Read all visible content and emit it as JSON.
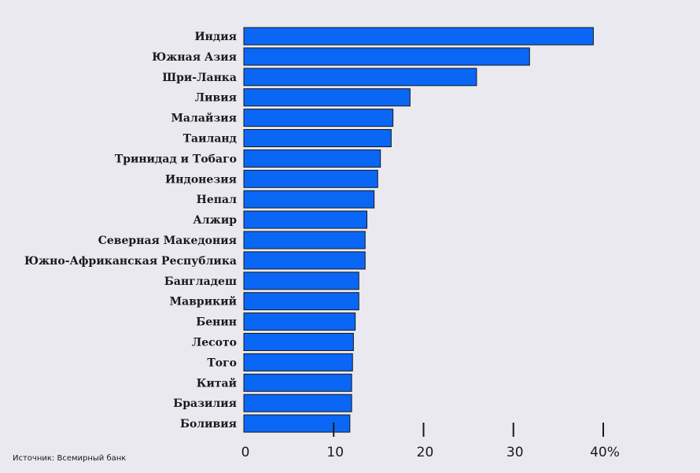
{
  "chart_data": {
    "type": "bar",
    "orientation": "horizontal",
    "categories": [
      "Индия",
      "Южная Азия",
      "Шри-Ланка",
      "Ливия",
      "Малайзия",
      "Таиланд",
      "Тринидад и Тобаго",
      "Индонезия",
      "Непал",
      "Алжир",
      "Северная Македония",
      "Южно-Африканская Республика",
      "Бангладеш",
      "Маврикий",
      "Бенин",
      "Лесото",
      "Того",
      "Китай",
      "Бразилия",
      "Боливия"
    ],
    "values": [
      38.9,
      31.8,
      25.9,
      18.5,
      16.6,
      16.4,
      15.2,
      14.9,
      14.5,
      13.7,
      13.5,
      13.5,
      12.8,
      12.8,
      12.4,
      12.2,
      12.1,
      12.0,
      12.0,
      11.8
    ],
    "xlim": [
      0,
      40
    ],
    "x_ticks": [
      "0",
      "10",
      "20",
      "30",
      "40%"
    ],
    "bar_color": "#0a66f5",
    "grid": false,
    "title": "",
    "xlabel": "",
    "ylabel": ""
  },
  "source": "Источник: Всемирный банк"
}
